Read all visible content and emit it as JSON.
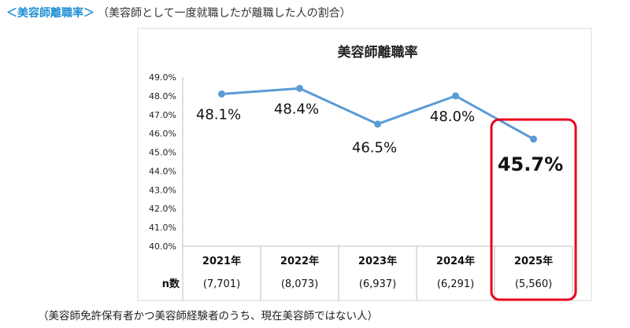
{
  "heading": {
    "open": "＜",
    "title": "美容師離職率",
    "close": "＞",
    "subtitle": "（美容師として一度就職したが離職した人の割合）"
  },
  "footnote": "（美容師免許保有者かつ美容師経験者のうち、現在美容師ではない人）",
  "colors": {
    "line": "#5b9bd5",
    "highlight": "#e8001c",
    "accent": "#1f8fd3",
    "grid": "#d9d9d9"
  },
  "chart_data": {
    "type": "line",
    "title": "美容師離職率",
    "categories": [
      "2021年",
      "2022年",
      "2023年",
      "2024年",
      "2025年"
    ],
    "values": [
      48.1,
      48.4,
      46.5,
      48.0,
      45.7
    ],
    "data_labels": [
      "48.1%",
      "48.4%",
      "46.5%",
      "48.0%",
      "45.7%"
    ],
    "yticks": [
      "40.0%",
      "41.0%",
      "42.0%",
      "43.0%",
      "44.0%",
      "45.0%",
      "46.0%",
      "47.0%",
      "48.0%",
      "49.0%"
    ],
    "ylim": [
      40,
      49
    ],
    "grid": false,
    "table_row_label": "n数",
    "n_values": [
      "(7,701)",
      "(8,073)",
      "(6,937)",
      "(6,291)",
      "(5,560)"
    ],
    "highlighted_category": "2025年"
  }
}
